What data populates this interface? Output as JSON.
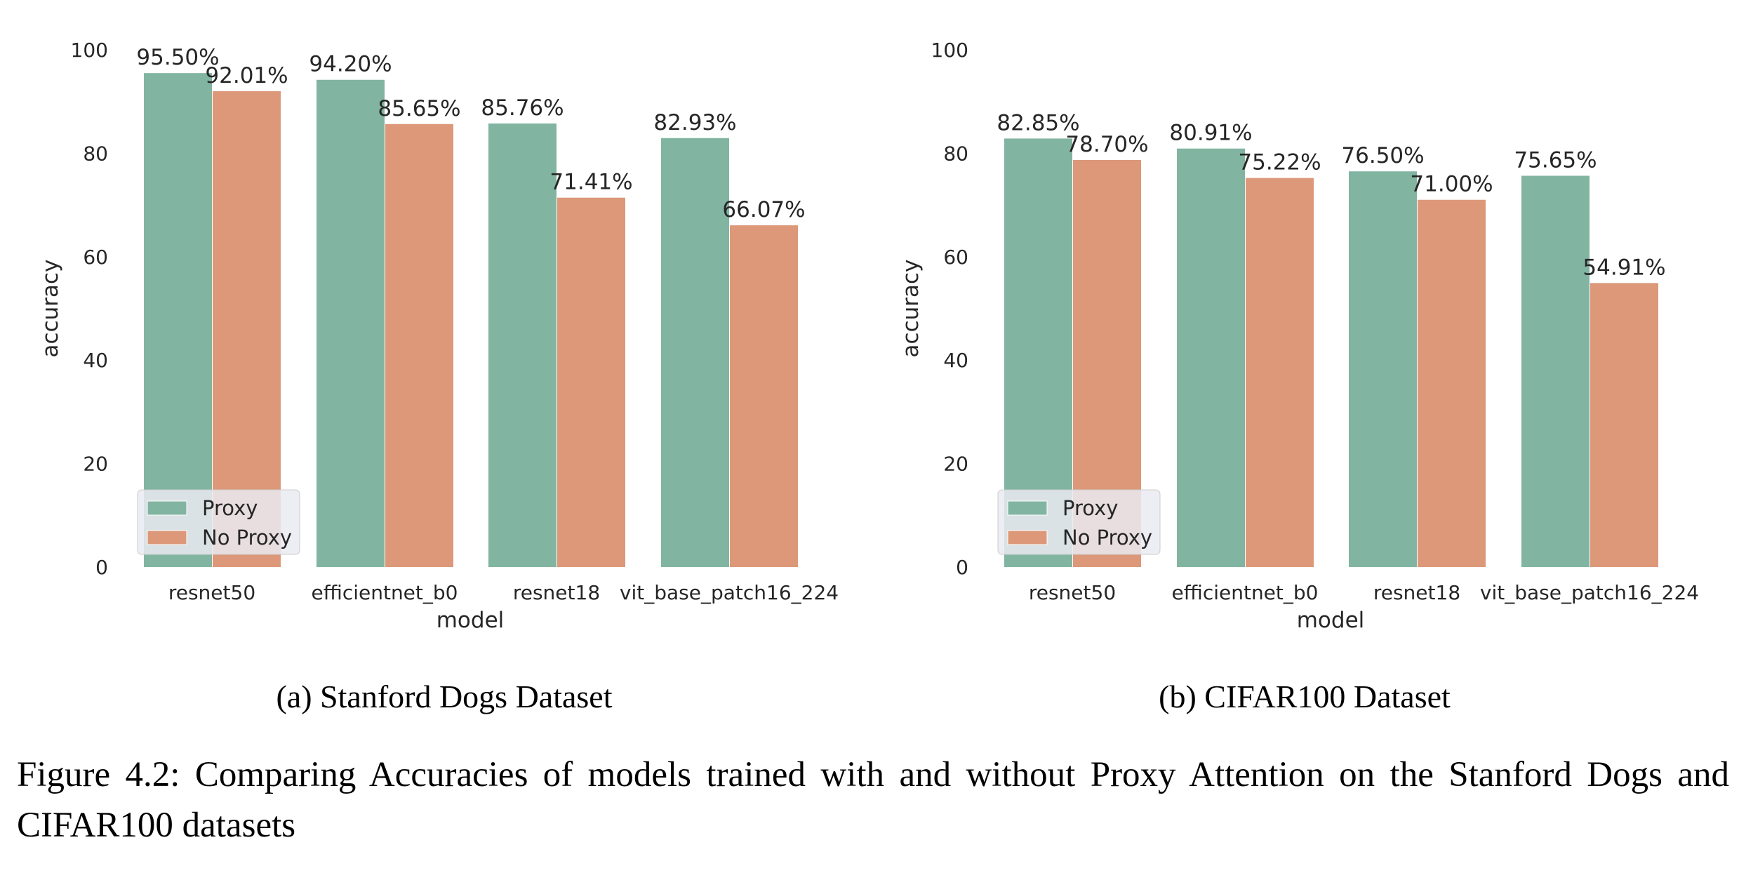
{
  "colors": {
    "proxy": "#82b4a2",
    "no_proxy": "#dc9879",
    "text": "#262626"
  },
  "chart_data": [
    {
      "type": "bar",
      "subcaption": "(a) Stanford Dogs Dataset",
      "xlabel": "model",
      "ylabel": "accuracy",
      "ylim": [
        0,
        100
      ],
      "yticks": [
        "0",
        "20",
        "40",
        "60",
        "80",
        "100"
      ],
      "grid": false,
      "legend": {
        "position": "bottom-left",
        "entries": [
          "Proxy",
          "No Proxy"
        ]
      },
      "categories": [
        "resnet50",
        "efficientnet_b0",
        "resnet18",
        "vit_base_patch16_224"
      ],
      "series": [
        {
          "name": "Proxy",
          "values": [
            95.5,
            94.2,
            85.76,
            82.93
          ],
          "labels": [
            "95.50%",
            "94.20%",
            "85.76%",
            "82.93%"
          ]
        },
        {
          "name": "No Proxy",
          "values": [
            92.01,
            85.65,
            71.41,
            66.07
          ],
          "labels": [
            "92.01%",
            "85.65%",
            "71.41%",
            "66.07%"
          ]
        }
      ]
    },
    {
      "type": "bar",
      "subcaption": "(b) CIFAR100 Dataset",
      "xlabel": "model",
      "ylabel": "accuracy",
      "ylim": [
        0,
        100
      ],
      "yticks": [
        "0",
        "20",
        "40",
        "60",
        "80",
        "100"
      ],
      "grid": false,
      "legend": {
        "position": "bottom-left",
        "entries": [
          "Proxy",
          "No Proxy"
        ]
      },
      "categories": [
        "resnet50",
        "efficientnet_b0",
        "resnet18",
        "vit_base_patch16_224"
      ],
      "series": [
        {
          "name": "Proxy",
          "values": [
            82.85,
            80.91,
            76.5,
            75.65
          ],
          "labels": [
            "82.85%",
            "80.91%",
            "76.50%",
            "75.65%"
          ]
        },
        {
          "name": "No Proxy",
          "values": [
            78.7,
            75.22,
            71.0,
            54.91
          ],
          "labels": [
            "78.70%",
            "75.22%",
            "71.00%",
            "54.91%"
          ]
        }
      ]
    }
  ],
  "caption": "Figure 4.2: Comparing Accuracies of models trained with and without Proxy Attention on the Stanford Dogs and CIFAR100 datasets"
}
